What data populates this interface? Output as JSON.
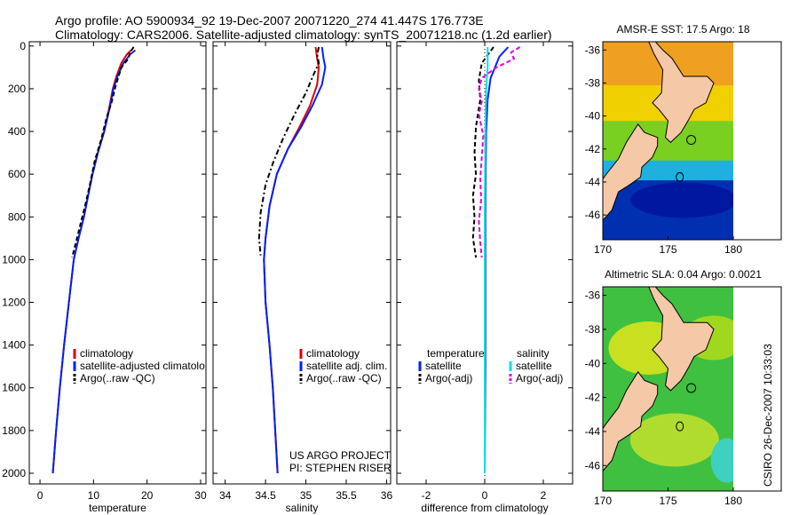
{
  "header": {
    "line1": "Argo profile: AO 5900934_92 19-Dec-2007 20071220_274 41.447S 176.773E",
    "line2": "Climatology: CARS2006. Satellite-adjusted climatology: synTS_20071218.nc (1.2d earlier)"
  },
  "colors": {
    "climatology": "#e00000",
    "satellite": "#0020ff",
    "argo": "#000000",
    "sal_satellite": "#00e0e0",
    "sal_argo": "#e000e0",
    "land": "#f5c8a8"
  },
  "chart_data": [
    {
      "type": "line",
      "id": "temperature",
      "xlabel": "temperature",
      "xlim": [
        -2,
        31
      ],
      "ylim": [
        2050,
        -20
      ],
      "xticks": [
        0,
        10,
        20,
        30
      ],
      "yticks": [
        0,
        200,
        400,
        600,
        800,
        1000,
        1200,
        1400,
        1600,
        1800,
        2000
      ],
      "legend": [
        "climatology",
        "satellite-adjusted climatolo",
        "Argo(..raw -QC)"
      ],
      "series": [
        {
          "name": "climatology",
          "color": "#e00000",
          "dash": "none",
          "points": [
            [
              17.0,
              20
            ],
            [
              16.2,
              40
            ],
            [
              15.2,
              80
            ],
            [
              14.3,
              140
            ],
            [
              13.6,
              200
            ],
            [
              13.0,
              280
            ],
            [
              12.0,
              400
            ],
            [
              10.8,
              500
            ],
            [
              9.8,
              600
            ],
            [
              9.0,
              700
            ],
            [
              8.2,
              800
            ],
            [
              7.2,
              900
            ],
            [
              6.3,
              1000
            ],
            [
              5.4,
              1200
            ],
            [
              4.5,
              1400
            ],
            [
              3.7,
              1600
            ],
            [
              3.0,
              1800
            ],
            [
              2.4,
              2000
            ]
          ]
        },
        {
          "name": "satellite-adjusted climatology",
          "color": "#0020ff",
          "dash": "none",
          "points": [
            [
              17.8,
              20
            ],
            [
              16.8,
              40
            ],
            [
              15.6,
              80
            ],
            [
              14.5,
              140
            ],
            [
              13.7,
              200
            ],
            [
              13.1,
              280
            ],
            [
              12.0,
              400
            ],
            [
              10.8,
              500
            ],
            [
              9.8,
              600
            ],
            [
              9.0,
              700
            ],
            [
              8.2,
              800
            ],
            [
              7.2,
              900
            ],
            [
              6.3,
              1000
            ],
            [
              5.4,
              1200
            ],
            [
              4.5,
              1400
            ],
            [
              3.7,
              1600
            ],
            [
              3.0,
              1800
            ],
            [
              2.4,
              2000
            ]
          ]
        },
        {
          "name": "Argo(..raw -QC)",
          "color": "#000000",
          "dash": "5,3",
          "points": [
            [
              17.5,
              5
            ],
            [
              16.8,
              30
            ],
            [
              16.5,
              60
            ],
            [
              15.2,
              100
            ],
            [
              14.2,
              180
            ],
            [
              13.4,
              260
            ],
            [
              12.4,
              340
            ],
            [
              11.4,
              440
            ],
            [
              10.2,
              540
            ],
            [
              9.4,
              640
            ],
            [
              8.6,
              730
            ],
            [
              7.6,
              830
            ],
            [
              6.6,
              930
            ],
            [
              6.0,
              990
            ]
          ]
        }
      ]
    },
    {
      "type": "line",
      "id": "salinity",
      "xlabel": "salinity",
      "xlim": [
        33.85,
        36.05
      ],
      "ylim": [
        2050,
        -20
      ],
      "xticks": [
        34,
        34.5,
        35,
        35.5,
        36
      ],
      "legend": [
        "climatology",
        "satellite adj. clim.",
        "Argo(..raw -QC)"
      ],
      "annotation": [
        "US ARGO PROJECT",
        "PI: STEPHEN RISER"
      ],
      "series": [
        {
          "name": "climatology",
          "color": "#e00000",
          "dash": "none",
          "points": [
            [
              35.12,
              5
            ],
            [
              35.14,
              60
            ],
            [
              35.16,
              100
            ],
            [
              35.14,
              180
            ],
            [
              35.05,
              280
            ],
            [
              34.92,
              380
            ],
            [
              34.78,
              480
            ],
            [
              34.64,
              600
            ],
            [
              34.55,
              750
            ],
            [
              34.5,
              900
            ],
            [
              34.48,
              1000
            ],
            [
              34.5,
              1200
            ],
            [
              34.55,
              1400
            ],
            [
              34.59,
              1600
            ],
            [
              34.62,
              1800
            ],
            [
              34.65,
              2000
            ]
          ]
        },
        {
          "name": "satellite adj. clim.",
          "color": "#0020ff",
          "dash": "none",
          "points": [
            [
              35.2,
              5
            ],
            [
              35.22,
              60
            ],
            [
              35.24,
              100
            ],
            [
              35.2,
              180
            ],
            [
              35.08,
              280
            ],
            [
              34.94,
              380
            ],
            [
              34.78,
              480
            ],
            [
              34.64,
              600
            ],
            [
              34.55,
              750
            ],
            [
              34.5,
              900
            ],
            [
              34.48,
              1000
            ],
            [
              34.5,
              1200
            ],
            [
              34.55,
              1400
            ],
            [
              34.59,
              1600
            ],
            [
              34.62,
              1800
            ],
            [
              34.65,
              2000
            ]
          ]
        },
        {
          "name": "Argo(..raw -QC)",
          "color": "#000000",
          "dash": "6,3,2,3",
          "points": [
            [
              35.16,
              5
            ],
            [
              35.14,
              40
            ],
            [
              35.16,
              80
            ],
            [
              35.1,
              130
            ],
            [
              35.0,
              220
            ],
            [
              34.86,
              320
            ],
            [
              34.72,
              430
            ],
            [
              34.6,
              540
            ],
            [
              34.5,
              650
            ],
            [
              34.44,
              780
            ],
            [
              34.42,
              900
            ],
            [
              34.44,
              980
            ]
          ]
        }
      ]
    },
    {
      "type": "line",
      "id": "difference",
      "xlabel": "difference from climatology",
      "xlim": [
        -3.0,
        3.0
      ],
      "ylim": [
        2050,
        -20
      ],
      "xticks": [
        -2,
        0,
        2
      ],
      "legend": [
        "temperature",
        "satellite",
        "Argo(-adj)",
        "salinity",
        "satellite",
        "Argo(-adj)"
      ],
      "series": [
        {
          "name": "temperature satellite",
          "color": "#0020ff",
          "dash": "none",
          "points": [
            [
              0.8,
              5
            ],
            [
              0.5,
              50
            ],
            [
              0.2,
              150
            ],
            [
              0.1,
              250
            ],
            [
              0.05,
              400
            ],
            [
              0.03,
              600
            ],
            [
              0.02,
              800
            ],
            [
              0.02,
              1000
            ],
            [
              0.02,
              1500
            ],
            [
              0.0,
              2000
            ]
          ]
        },
        {
          "name": "temperature Argo(-adj)",
          "color": "#000000",
          "dash": "5,3",
          "points": [
            [
              0.3,
              5
            ],
            [
              -0.1,
              80
            ],
            [
              -0.2,
              160
            ],
            [
              -0.15,
              250
            ],
            [
              -0.3,
              380
            ],
            [
              -0.35,
              500
            ],
            [
              -0.3,
              600
            ],
            [
              -0.4,
              700
            ],
            [
              -0.35,
              800
            ],
            [
              -0.4,
              900
            ],
            [
              -0.3,
              990
            ]
          ]
        },
        {
          "name": "salinity satellite",
          "color": "#00e0e0",
          "dash": "none",
          "points": [
            [
              0.1,
              5
            ],
            [
              0.1,
              100
            ],
            [
              0.05,
              200
            ],
            [
              0.02,
              400
            ],
            [
              0.0,
              800
            ],
            [
              0.0,
              1200
            ],
            [
              0.0,
              2000
            ]
          ]
        },
        {
          "name": "salinity Argo(-adj)",
          "color": "#e000e0",
          "dash": "5,3",
          "points": [
            [
              1.2,
              5
            ],
            [
              0.9,
              30
            ],
            [
              1.0,
              60
            ],
            [
              0.4,
              100
            ],
            [
              -0.1,
              150
            ],
            [
              -0.2,
              200
            ],
            [
              -0.1,
              260
            ],
            [
              -0.2,
              320
            ],
            [
              -0.05,
              420
            ],
            [
              -0.1,
              520
            ],
            [
              -0.15,
              620
            ],
            [
              -0.12,
              720
            ],
            [
              -0.2,
              820
            ],
            [
              -0.15,
              920
            ],
            [
              -0.1,
              990
            ]
          ]
        }
      ]
    },
    {
      "type": "heatmap",
      "id": "sst-map",
      "title": "AMSR-E SST: 17.5 Argo: 18",
      "xlim": [
        170,
        180
      ],
      "ylim": [
        -47.5,
        -35.5
      ],
      "xticks": [
        170,
        175,
        180
      ],
      "yticks": [
        -36,
        -38,
        -40,
        -42,
        -44,
        -46
      ],
      "float_lon": 176.773,
      "float_lat": -41.447
    },
    {
      "type": "heatmap",
      "id": "sla-map",
      "title": "Altimetric SLA: 0.04 Argo: 0.0021",
      "xlim": [
        170,
        180
      ],
      "ylim": [
        -47.5,
        -35.5
      ],
      "xticks": [
        170,
        175,
        180
      ],
      "yticks": [
        -36,
        -38,
        -40,
        -42,
        -44,
        -46
      ],
      "float_lon": 176.773,
      "float_lat": -41.447
    }
  ],
  "side_label": "CSIRO 26-Dec-2007 10:33:03"
}
